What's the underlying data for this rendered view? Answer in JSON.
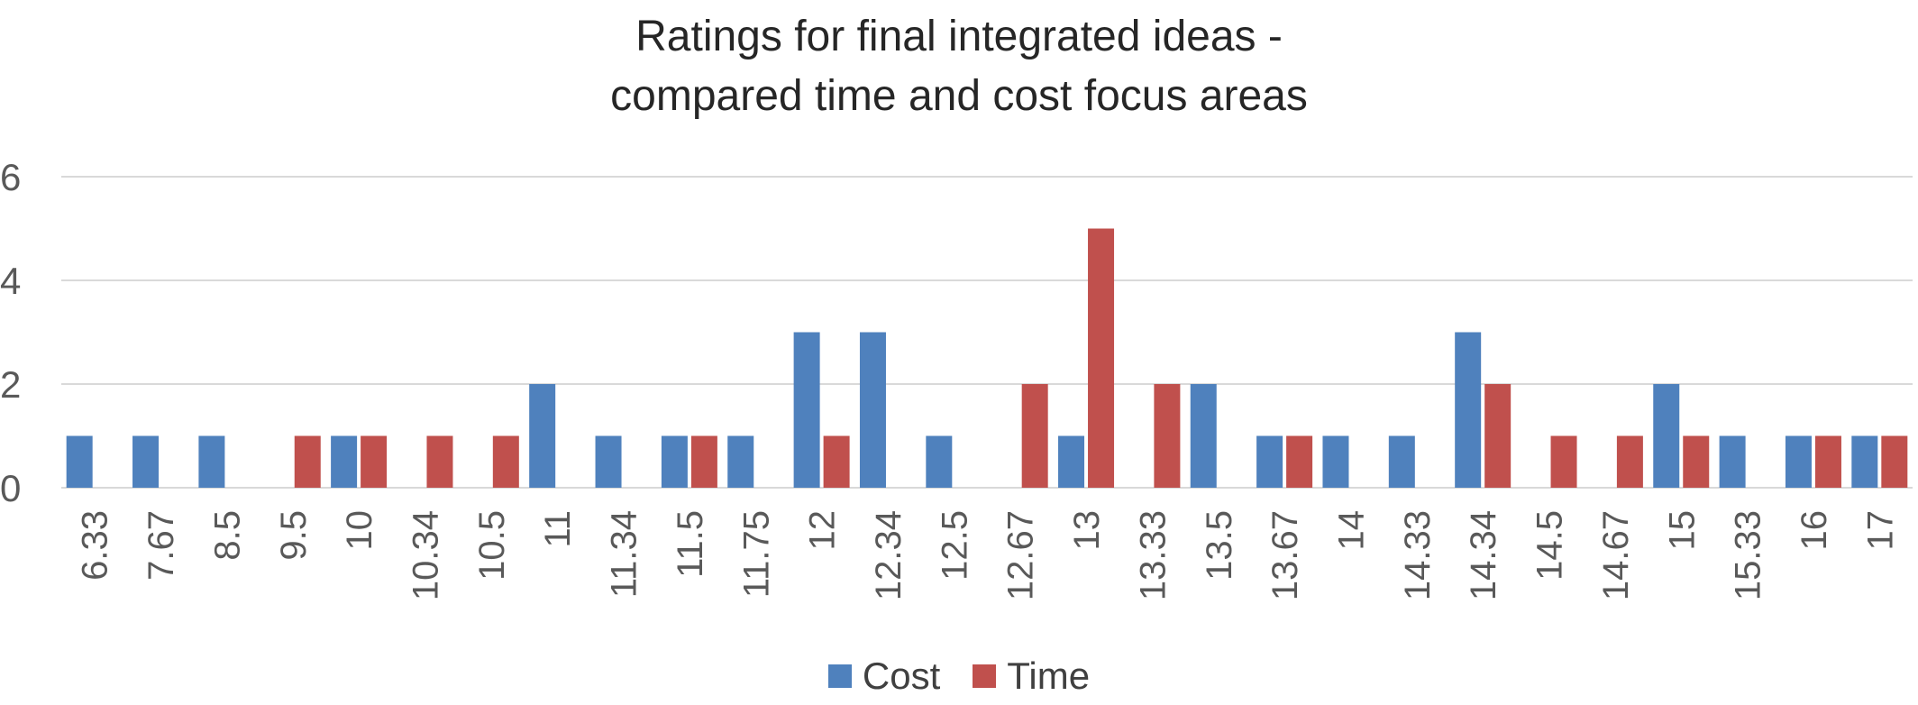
{
  "chart_data": {
    "type": "bar",
    "title_lines": [
      "Ratings for final integrated ideas -",
      "compared time and cost focus areas"
    ],
    "xlabel": "",
    "ylabel": "",
    "ylim": [
      0,
      6
    ],
    "y_ticks": [
      0,
      2,
      4,
      6
    ],
    "y_tick_labels": [
      "0",
      "2",
      "4",
      "6"
    ],
    "grid": true,
    "legend_position": "bottom",
    "categories": [
      "6.33",
      "7.67",
      "8.5",
      "9.5",
      "10",
      "10.34",
      "10.5",
      "11",
      "11.34",
      "11.5",
      "11.75",
      "12",
      "12.34",
      "12.5",
      "12.67",
      "13",
      "13.33",
      "13.5",
      "13.67",
      "14",
      "14.33",
      "14.34",
      "14.5",
      "14.67",
      "15",
      "15.33",
      "16",
      "17"
    ],
    "series": [
      {
        "name": "Cost",
        "color": "#4f81bd",
        "values": [
          1,
          1,
          1,
          0,
          1,
          0,
          0,
          2,
          1,
          1,
          1,
          3,
          3,
          1,
          0,
          1,
          0,
          2,
          1,
          1,
          1,
          3,
          0,
          0,
          2,
          1,
          1,
          1
        ]
      },
      {
        "name": "Time",
        "color": "#c0504d",
        "values": [
          0,
          0,
          0,
          1,
          1,
          1,
          1,
          0,
          0,
          1,
          0,
          1,
          0,
          0,
          2,
          5,
          2,
          0,
          1,
          0,
          0,
          2,
          1,
          1,
          1,
          0,
          1,
          1
        ]
      }
    ]
  }
}
